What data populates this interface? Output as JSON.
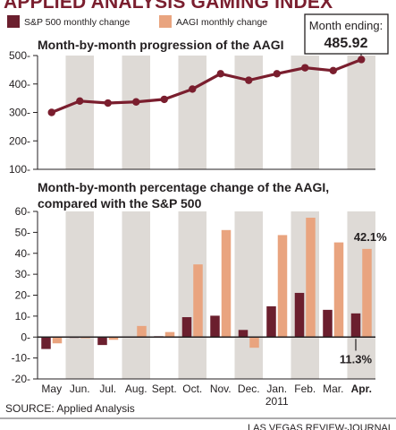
{
  "header": {
    "title": "APPLIED ANALYSIS GAMING INDEX",
    "legend": [
      {
        "label": "S&P 500 monthly change",
        "color": "#6b1f2e"
      },
      {
        "label": "AAGI monthly change",
        "color": "#e9a47f"
      }
    ],
    "callout_label": "Month ending:",
    "callout_value": "485.92"
  },
  "chart_data": [
    {
      "type": "line",
      "title": "Month-by-month progression of the AAGI",
      "x": [
        "May",
        "Jun.",
        "Jul.",
        "Aug.",
        "Sept.",
        "Oct.",
        "Nov.",
        "Dec.",
        "Jan. 2011",
        "Feb.",
        "Mar.",
        "Apr."
      ],
      "series": [
        {
          "values": [
            300,
            340,
            333,
            337,
            346,
            382,
            436,
            413,
            436,
            457,
            447,
            485.92
          ]
        }
      ],
      "ylim": [
        100,
        500
      ],
      "yticks": [
        "100",
        "200",
        "300",
        "400",
        "500"
      ],
      "line_color": "#7a1e2e",
      "grid": "vertical bands"
    },
    {
      "type": "bar",
      "title": "Month-by-month percentage change of the AAGI, compared with the S&P 500",
      "categories": [
        "May",
        "Jun.",
        "Jul.",
        "Aug.",
        "Sept.",
        "Oct.",
        "Nov.",
        "Dec.",
        "Jan.",
        "Feb.",
        "Mar.",
        "Apr."
      ],
      "year_label": "2011",
      "series": [
        {
          "name": "S&P 500 monthly change",
          "values": [
            -5.7,
            -0.4,
            -3.8,
            -0.3,
            0.4,
            9.5,
            10.2,
            3.4,
            14.7,
            21.1,
            13.0,
            11.3
          ],
          "color": "#6b1f2e"
        },
        {
          "name": "AAGI monthly change",
          "values": [
            -3.0,
            -0.6,
            -1.3,
            5.3,
            2.4,
            34.7,
            51.1,
            -5.1,
            48.7,
            57.0,
            45.2,
            42.1
          ],
          "color": "#e9a47f"
        }
      ],
      "ylim": [
        -20,
        60
      ],
      "yticks": [
        "-20",
        "-10",
        "0",
        "10",
        "20",
        "30",
        "40",
        "50",
        "60"
      ],
      "annotations": [
        {
          "text": "42.1%",
          "series": 1,
          "index": 11
        },
        {
          "text": "11.3%",
          "series": 0,
          "index": 11
        }
      ]
    }
  ],
  "footer": {
    "source": "SOURCE: Applied Analysis",
    "credit": "LAS VEGAS REVIEW-JOURNAL"
  }
}
